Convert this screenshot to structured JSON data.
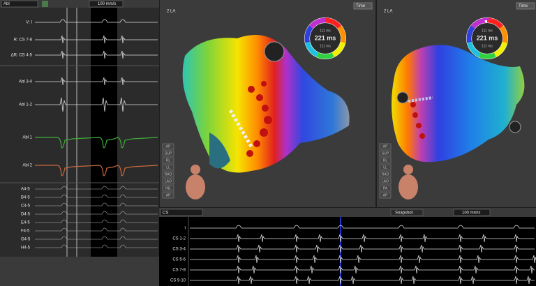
{
  "toolbar": {
    "channel": "Abl",
    "speed": "100 mm/s"
  },
  "left_signals": [
    "V: I",
    "R: CS 7-8",
    "ΔR: CS 4-5",
    "Abl 3-4",
    "Abl 1-2",
    "Abl 1",
    "Abl 2"
  ],
  "electrodes": [
    {
      "label": "A4-5",
      "color": "#e03030"
    },
    {
      "label": "B4-5",
      "color": "#e08a20"
    },
    {
      "label": "C4-5",
      "color": "#d8d020"
    },
    {
      "label": "D4-5",
      "color": "#60c030"
    },
    {
      "label": "E4-5",
      "color": "#20b8a0"
    },
    {
      "label": "F4-5",
      "color": "#2090e0"
    },
    {
      "label": "G4-5",
      "color": "#3050e0"
    },
    {
      "label": "H4-5",
      "color": "#8040d0"
    }
  ],
  "maps": [
    {
      "chamber": "2 LA",
      "mode": "Time",
      "ring": {
        "top": "111 ms",
        "center": "221 ms",
        "bottom": "111 ms"
      },
      "views": [
        "AP",
        "SUP",
        "RL",
        "LL",
        "RAO",
        "LAO",
        "INL",
        "AP"
      ]
    },
    {
      "chamber": "2 LA",
      "mode": "Time",
      "ring": {
        "top": "111 ms",
        "center": "221 ms",
        "bottom": "111 ms"
      },
      "views": [
        "AP",
        "SUP",
        "RL",
        "LL",
        "RAO",
        "LAO",
        "PA",
        "AP"
      ]
    }
  ],
  "bottom_panel": {
    "channel": "CS",
    "snapshot": "Snapshot",
    "speed": "100 mm/s",
    "signals": [
      "I",
      "CS 1-2",
      "CS 3-4",
      "CS 5-6",
      "CS 7-8",
      "CS 9-10"
    ]
  }
}
